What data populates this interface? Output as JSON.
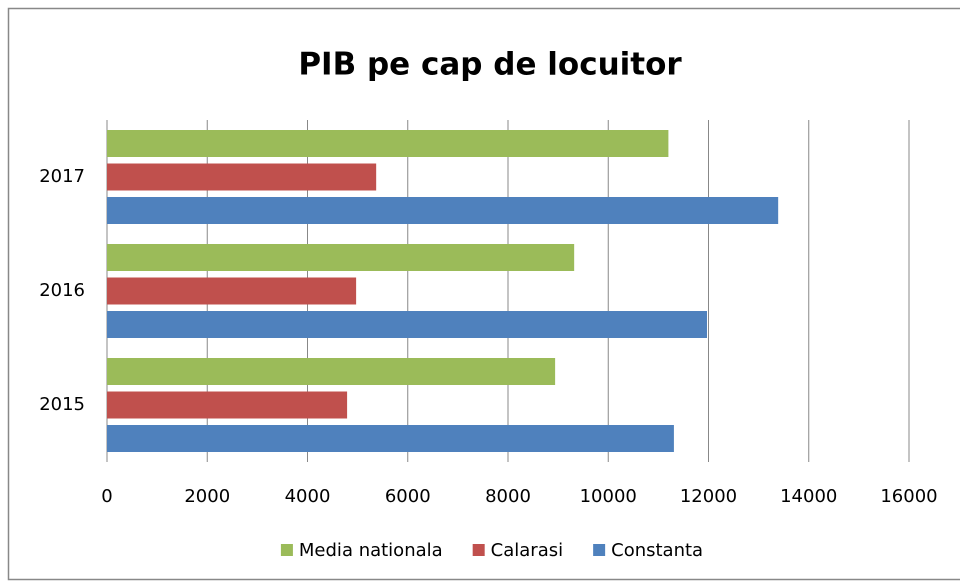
{
  "chart_data": {
    "type": "hbar",
    "title": "PIB pe cap de locuitor",
    "categories": [
      "2015",
      "2016",
      "2017"
    ],
    "series": [
      {
        "name": "Media nationala",
        "color": "#9bbb59",
        "values": [
          8940,
          9320,
          11200
        ]
      },
      {
        "name": "Calarasi",
        "color": "#c0504d",
        "values": [
          4790,
          4970,
          5370
        ]
      },
      {
        "name": "Constanta",
        "color": "#4f81bd",
        "values": [
          11310,
          11970,
          13390
        ]
      }
    ],
    "xlim": [
      0,
      16000
    ],
    "xticks": [
      0,
      2000,
      4000,
      6000,
      8000,
      10000,
      12000,
      14000,
      16000
    ],
    "grid": true,
    "legend": "bottom"
  }
}
